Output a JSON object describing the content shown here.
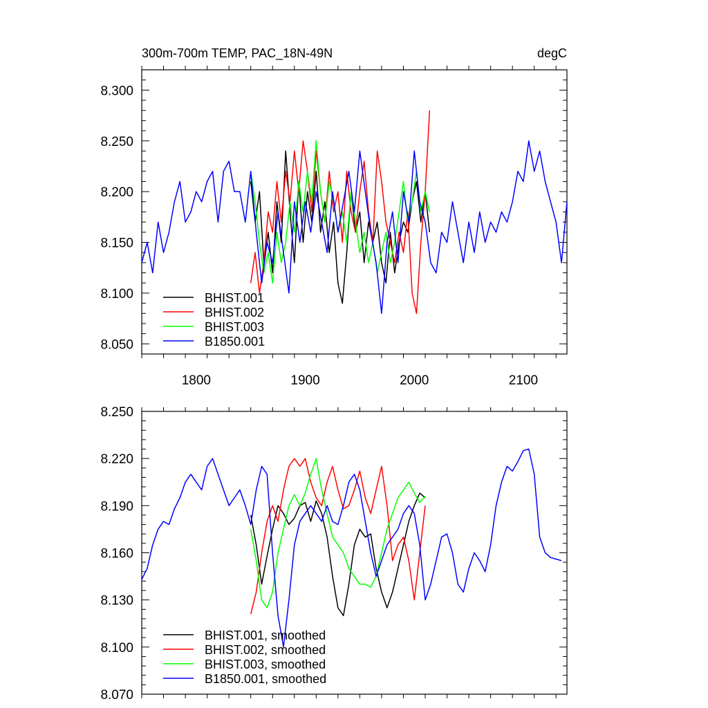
{
  "chart_data": [
    {
      "type": "line",
      "title": "300m-700m TEMP, PAC_18N-49N",
      "units": "degC",
      "xlim": [
        1750,
        2140
      ],
      "ylim": [
        8.04,
        8.32
      ],
      "xticks": [
        1800,
        1900,
        2000,
        2100
      ],
      "xtick_labels": [
        "1800",
        "1900",
        "2000",
        "2100"
      ],
      "yticks": [
        8.05,
        8.1,
        8.15,
        8.2,
        8.25,
        8.3
      ],
      "ytick_labels": [
        "8.050",
        "8.100",
        "8.150",
        "8.200",
        "8.250",
        "8.300"
      ],
      "legend_position": "bottom-left",
      "series": [
        {
          "name": "BHIST.001",
          "color": "#000000",
          "x": [
            1850,
            1854,
            1858,
            1862,
            1866,
            1870,
            1874,
            1878,
            1882,
            1886,
            1890,
            1894,
            1898,
            1902,
            1906,
            1910,
            1914,
            1918,
            1922,
            1926,
            1930,
            1934,
            1938,
            1942,
            1946,
            1950,
            1954,
            1958,
            1962,
            1966,
            1970,
            1974,
            1978,
            1982,
            1986,
            1990,
            1994,
            1998,
            2002,
            2006,
            2010,
            2014
          ],
          "values": [
            8.21,
            8.17,
            8.2,
            8.13,
            8.16,
            8.12,
            8.19,
            8.15,
            8.24,
            8.18,
            8.13,
            8.21,
            8.15,
            8.2,
            8.17,
            8.22,
            8.16,
            8.19,
            8.14,
            8.17,
            8.11,
            8.09,
            8.14,
            8.2,
            8.16,
            8.18,
            8.13,
            8.17,
            8.15,
            8.17,
            8.13,
            8.11,
            8.16,
            8.12,
            8.15,
            8.17,
            8.16,
            8.19,
            8.21,
            8.17,
            8.2,
            8.16
          ]
        },
        {
          "name": "BHIST.002",
          "color": "#ff0000",
          "x": [
            1850,
            1854,
            1858,
            1862,
            1866,
            1870,
            1874,
            1878,
            1882,
            1886,
            1890,
            1894,
            1898,
            1902,
            1906,
            1910,
            1914,
            1918,
            1922,
            1926,
            1930,
            1934,
            1938,
            1942,
            1946,
            1950,
            1954,
            1958,
            1962,
            1966,
            1970,
            1974,
            1978,
            1982,
            1986,
            1990,
            1994,
            1998,
            2002,
            2006,
            2010,
            2014
          ],
          "values": [
            8.11,
            8.14,
            8.1,
            8.13,
            8.18,
            8.16,
            8.21,
            8.17,
            8.22,
            8.19,
            8.24,
            8.2,
            8.25,
            8.22,
            8.18,
            8.24,
            8.2,
            8.17,
            8.22,
            8.18,
            8.2,
            8.15,
            8.22,
            8.18,
            8.16,
            8.2,
            8.23,
            8.18,
            8.15,
            8.24,
            8.21,
            8.17,
            8.15,
            8.13,
            8.16,
            8.14,
            8.18,
            8.1,
            8.08,
            8.15,
            8.2,
            8.28
          ]
        },
        {
          "name": "BHIST.003",
          "color": "#00ff00",
          "x": [
            1850,
            1854,
            1858,
            1862,
            1866,
            1870,
            1874,
            1878,
            1882,
            1886,
            1890,
            1894,
            1898,
            1902,
            1906,
            1910,
            1914,
            1918,
            1922,
            1926,
            1930,
            1934,
            1938,
            1942,
            1946,
            1950,
            1954,
            1958,
            1962,
            1966,
            1970,
            1974,
            1978,
            1982,
            1986,
            1990,
            1994,
            1998,
            2002,
            2006,
            2010,
            2014
          ],
          "values": [
            8.22,
            8.19,
            8.15,
            8.12,
            8.14,
            8.11,
            8.16,
            8.13,
            8.15,
            8.19,
            8.16,
            8.21,
            8.18,
            8.22,
            8.19,
            8.25,
            8.2,
            8.17,
            8.21,
            8.19,
            8.16,
            8.18,
            8.15,
            8.2,
            8.17,
            8.14,
            8.16,
            8.13,
            8.15,
            8.12,
            8.14,
            8.16,
            8.13,
            8.15,
            8.18,
            8.21,
            8.17,
            8.19,
            8.22,
            8.18,
            8.2,
            8.18
          ]
        },
        {
          "name": "B1850.001",
          "color": "#0000ff",
          "x": [
            1750,
            1755,
            1760,
            1765,
            1770,
            1775,
            1780,
            1785,
            1790,
            1795,
            1800,
            1805,
            1810,
            1815,
            1820,
            1825,
            1830,
            1835,
            1840,
            1845,
            1850,
            1855,
            1860,
            1865,
            1870,
            1875,
            1880,
            1885,
            1890,
            1895,
            1900,
            1905,
            1910,
            1915,
            1920,
            1925,
            1930,
            1935,
            1940,
            1945,
            1950,
            1955,
            1960,
            1965,
            1970,
            1975,
            1980,
            1985,
            1990,
            1995,
            2000,
            2005,
            2010,
            2015,
            2020,
            2025,
            2030,
            2035,
            2040,
            2045,
            2050,
            2055,
            2060,
            2065,
            2070,
            2075,
            2080,
            2085,
            2090,
            2095,
            2100,
            2105,
            2110,
            2115,
            2120,
            2125,
            2130,
            2135,
            2140
          ],
          "values": [
            8.13,
            8.15,
            8.12,
            8.17,
            8.14,
            8.16,
            8.19,
            8.21,
            8.17,
            8.18,
            8.2,
            8.19,
            8.21,
            8.22,
            8.17,
            8.22,
            8.23,
            8.2,
            8.2,
            8.17,
            8.22,
            8.16,
            8.11,
            8.15,
            8.13,
            8.18,
            8.14,
            8.1,
            8.19,
            8.15,
            8.19,
            8.16,
            8.2,
            8.17,
            8.14,
            8.2,
            8.16,
            8.19,
            8.22,
            8.18,
            8.24,
            8.2,
            8.16,
            8.13,
            8.08,
            8.15,
            8.18,
            8.13,
            8.2,
            8.17,
            8.24,
            8.19,
            8.17,
            8.13,
            8.12,
            8.16,
            8.15,
            8.19,
            8.16,
            8.13,
            8.17,
            8.14,
            8.18,
            8.15,
            8.17,
            8.16,
            8.18,
            8.17,
            8.19,
            8.22,
            8.21,
            8.25,
            8.22,
            8.24,
            8.21,
            8.19,
            8.17,
            8.13,
            8.19
          ]
        }
      ]
    },
    {
      "type": "line",
      "title": "",
      "xlim": [
        1750,
        2140
      ],
      "ylim": [
        8.07,
        8.25
      ],
      "xticks": [
        1800,
        1900,
        2000,
        2100
      ],
      "yticks": [
        8.07,
        8.1,
        8.13,
        8.16,
        8.19,
        8.22,
        8.25
      ],
      "ytick_labels": [
        "8.070",
        "8.100",
        "8.130",
        "8.160",
        "8.190",
        "8.220",
        "8.250"
      ],
      "legend_position": "bottom-left",
      "series": [
        {
          "name": "BHIST.001, smoothed",
          "color": "#000000",
          "x": [
            1850,
            1855,
            1860,
            1865,
            1870,
            1875,
            1880,
            1885,
            1890,
            1895,
            1900,
            1905,
            1910,
            1915,
            1920,
            1925,
            1930,
            1935,
            1940,
            1945,
            1950,
            1955,
            1960,
            1965,
            1970,
            1975,
            1980,
            1985,
            1990,
            1995,
            2000,
            2005,
            2010
          ],
          "values": [
            8.184,
            8.165,
            8.14,
            8.158,
            8.175,
            8.19,
            8.185,
            8.178,
            8.182,
            8.19,
            8.192,
            8.18,
            8.193,
            8.185,
            8.17,
            8.145,
            8.125,
            8.12,
            8.14,
            8.165,
            8.175,
            8.17,
            8.172,
            8.15,
            8.135,
            8.125,
            8.135,
            8.15,
            8.165,
            8.18,
            8.19,
            8.198,
            8.195
          ]
        },
        {
          "name": "BHIST.002, smoothed",
          "color": "#ff0000",
          "x": [
            1850,
            1855,
            1860,
            1865,
            1870,
            1875,
            1880,
            1885,
            1890,
            1895,
            1900,
            1905,
            1910,
            1915,
            1920,
            1925,
            1930,
            1935,
            1940,
            1945,
            1950,
            1955,
            1960,
            1965,
            1970,
            1975,
            1980,
            1985,
            1990,
            1995,
            2000,
            2005,
            2010
          ],
          "values": [
            8.121,
            8.135,
            8.16,
            8.18,
            8.19,
            8.18,
            8.2,
            8.215,
            8.22,
            8.215,
            8.22,
            8.205,
            8.195,
            8.19,
            8.205,
            8.215,
            8.2,
            8.188,
            8.19,
            8.2,
            8.212,
            8.195,
            8.185,
            8.2,
            8.215,
            8.19,
            8.155,
            8.165,
            8.17,
            8.155,
            8.13,
            8.16,
            8.19
          ]
        },
        {
          "name": "BHIST.003, smoothed",
          "color": "#00ff00",
          "x": [
            1850,
            1855,
            1860,
            1865,
            1870,
            1875,
            1880,
            1885,
            1890,
            1895,
            1900,
            1905,
            1910,
            1915,
            1920,
            1925,
            1930,
            1935,
            1940,
            1945,
            1950,
            1955,
            1960,
            1965,
            1970,
            1975,
            1980,
            1985,
            1990,
            1995,
            2000,
            2005,
            2010
          ],
          "values": [
            8.175,
            8.155,
            8.13,
            8.125,
            8.135,
            8.16,
            8.175,
            8.19,
            8.197,
            8.19,
            8.198,
            8.21,
            8.22,
            8.2,
            8.185,
            8.17,
            8.165,
            8.16,
            8.15,
            8.145,
            8.14,
            8.14,
            8.138,
            8.145,
            8.16,
            8.175,
            8.185,
            8.195,
            8.2,
            8.205,
            8.198,
            8.192,
            8.196
          ]
        },
        {
          "name": "B1850.001, smoothed",
          "color": "#0000ff",
          "x": [
            1750,
            1755,
            1760,
            1765,
            1770,
            1775,
            1780,
            1785,
            1790,
            1795,
            1800,
            1805,
            1810,
            1815,
            1820,
            1825,
            1830,
            1835,
            1840,
            1845,
            1850,
            1855,
            1860,
            1865,
            1870,
            1875,
            1880,
            1885,
            1890,
            1895,
            1900,
            1905,
            1910,
            1915,
            1920,
            1925,
            1930,
            1935,
            1940,
            1945,
            1950,
            1955,
            1960,
            1965,
            1970,
            1975,
            1980,
            1985,
            1990,
            1995,
            2000,
            2005,
            2010,
            2015,
            2020,
            2025,
            2030,
            2035,
            2040,
            2045,
            2050,
            2055,
            2060,
            2065,
            2070,
            2075,
            2080,
            2085,
            2090,
            2095,
            2100,
            2105,
            2110,
            2115,
            2120,
            2125,
            2130,
            2135
          ],
          "values": [
            8.143,
            8.15,
            8.165,
            8.175,
            8.18,
            8.178,
            8.188,
            8.195,
            8.205,
            8.21,
            8.205,
            8.2,
            8.215,
            8.22,
            8.21,
            8.2,
            8.19,
            8.195,
            8.2,
            8.19,
            8.178,
            8.2,
            8.215,
            8.21,
            8.16,
            8.12,
            8.1,
            8.13,
            8.165,
            8.18,
            8.185,
            8.19,
            8.185,
            8.18,
            8.19,
            8.18,
            8.178,
            8.19,
            8.205,
            8.21,
            8.2,
            8.18,
            8.16,
            8.145,
            8.155,
            8.165,
            8.17,
            8.175,
            8.185,
            8.19,
            8.185,
            8.165,
            8.13,
            8.14,
            8.155,
            8.17,
            8.172,
            8.16,
            8.14,
            8.135,
            8.15,
            8.16,
            8.155,
            8.148,
            8.165,
            8.19,
            8.205,
            8.215,
            8.212,
            8.218,
            8.225,
            8.226,
            8.21,
            8.17,
            8.16,
            8.157,
            8.156,
            8.155
          ]
        }
      ]
    }
  ]
}
